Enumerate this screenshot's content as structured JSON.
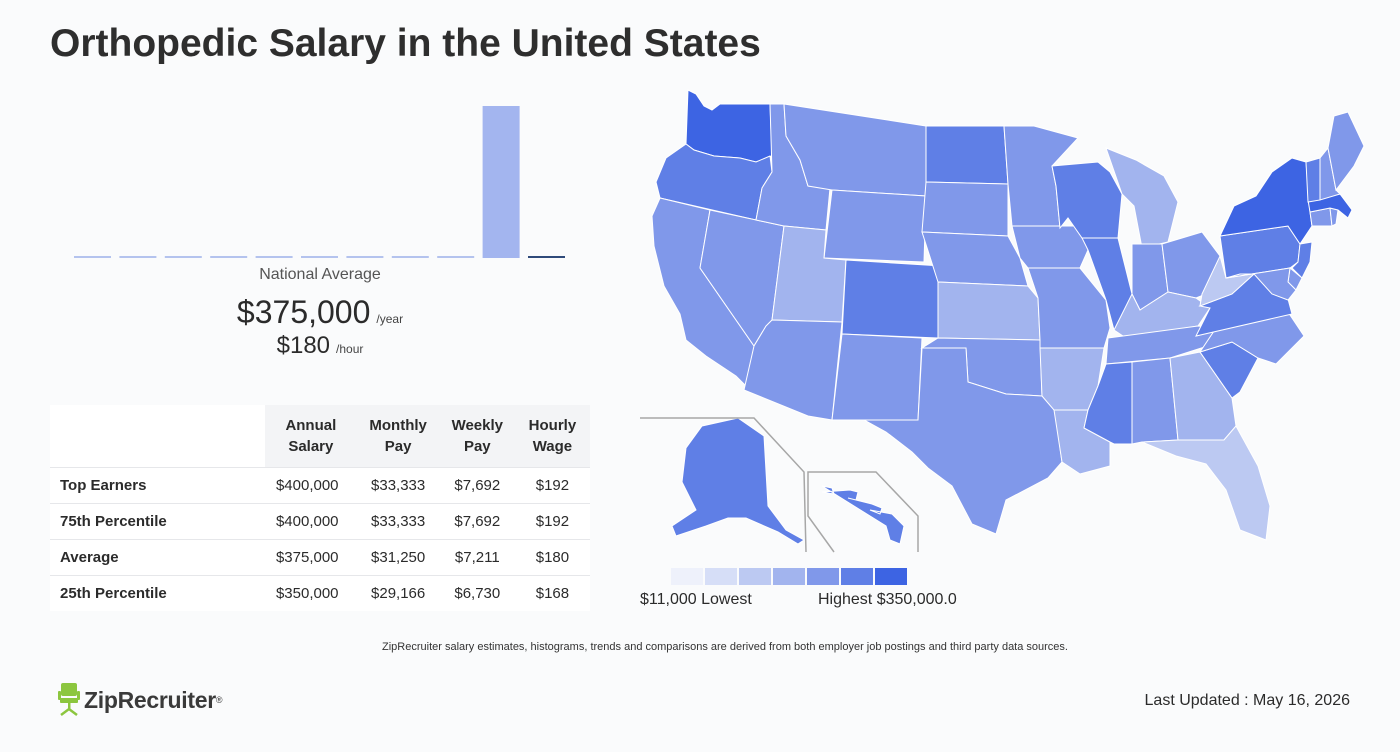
{
  "page": {
    "title": "Orthopedic Salary in the United States",
    "national_average_label": "National Average",
    "annual_salary": "$375,000",
    "annual_unit": "/year",
    "hourly_wage": "$180",
    "hourly_unit": "/hour",
    "footnote": "ZipRecruiter salary estimates, histograms, trends and comparisons are derived from both employer job postings and third party data sources.",
    "logo_text": "ZipRecruiter",
    "logo_reg": "®",
    "last_updated": "Last Updated : May 16, 2026"
  },
  "table": {
    "headers": [
      "",
      "Annual Salary",
      "Monthly Pay",
      "Weekly Pay",
      "Hourly Wage"
    ],
    "rows": [
      {
        "label": "Top Earners",
        "annual": "$400,000",
        "monthly": "$33,333",
        "weekly": "$7,692",
        "hourly": "$192"
      },
      {
        "label": "75th Percentile",
        "annual": "$400,000",
        "monthly": "$33,333",
        "weekly": "$7,692",
        "hourly": "$192"
      },
      {
        "label": "Average",
        "annual": "$375,000",
        "monthly": "$31,250",
        "weekly": "$7,211",
        "hourly": "$180"
      },
      {
        "label": "25th Percentile",
        "annual": "$350,000",
        "monthly": "$29,166",
        "weekly": "$6,730",
        "hourly": "$168"
      }
    ]
  },
  "legend": {
    "low_label": "$11,000 Lowest",
    "high_label": "Highest $350,000.0",
    "colors": [
      "#eef1fb",
      "#d6def7",
      "#bcc9f2",
      "#a2b4ee",
      "#8098ea",
      "#5f7fe6",
      "#3d64e3"
    ]
  },
  "chart_data": [
    {
      "type": "bar",
      "description_role": "salary histogram",
      "values": [
        0,
        0,
        0,
        0,
        0,
        0,
        0,
        0,
        0,
        100,
        0
      ],
      "highlight_index": 9,
      "marker_index": 10,
      "colors": {
        "bar": "#a3b5ef",
        "baseline": "#b4c3ee",
        "marker": "#2f4a7a"
      }
    },
    {
      "type": "choropleth",
      "regions": [
        {
          "state": "WA",
          "shade": 6
        },
        {
          "state": "OR",
          "shade": 5
        },
        {
          "state": "CA",
          "shade": 4
        },
        {
          "state": "NV",
          "shade": 4
        },
        {
          "state": "ID",
          "shade": 4
        },
        {
          "state": "MT",
          "shade": 4
        },
        {
          "state": "WY",
          "shade": 4
        },
        {
          "state": "UT",
          "shade": 3
        },
        {
          "state": "AZ",
          "shade": 4
        },
        {
          "state": "CO",
          "shade": 5
        },
        {
          "state": "NM",
          "shade": 4
        },
        {
          "state": "ND",
          "shade": 5
        },
        {
          "state": "SD",
          "shade": 4
        },
        {
          "state": "NE",
          "shade": 4
        },
        {
          "state": "KS",
          "shade": 3
        },
        {
          "state": "OK",
          "shade": 4
        },
        {
          "state": "TX",
          "shade": 4
        },
        {
          "state": "MN",
          "shade": 4
        },
        {
          "state": "IA",
          "shade": 4
        },
        {
          "state": "MO",
          "shade": 4
        },
        {
          "state": "AR",
          "shade": 3
        },
        {
          "state": "LA",
          "shade": 3
        },
        {
          "state": "WI",
          "shade": 5
        },
        {
          "state": "IL",
          "shade": 5
        },
        {
          "state": "MI",
          "shade": 3
        },
        {
          "state": "IN",
          "shade": 4
        },
        {
          "state": "OH",
          "shade": 4
        },
        {
          "state": "KY",
          "shade": 3
        },
        {
          "state": "TN",
          "shade": 4
        },
        {
          "state": "MS",
          "shade": 5
        },
        {
          "state": "AL",
          "shade": 4
        },
        {
          "state": "GA",
          "shade": 3
        },
        {
          "state": "FL",
          "shade": 2
        },
        {
          "state": "SC",
          "shade": 5
        },
        {
          "state": "NC",
          "shade": 4
        },
        {
          "state": "VA",
          "shade": 5
        },
        {
          "state": "WV",
          "shade": 2
        },
        {
          "state": "PA",
          "shade": 5
        },
        {
          "state": "NY",
          "shade": 6
        },
        {
          "state": "NJ",
          "shade": 5
        },
        {
          "state": "DE",
          "shade": 4
        },
        {
          "state": "MD",
          "shade": 4
        },
        {
          "state": "CT",
          "shade": 4
        },
        {
          "state": "RI",
          "shade": 4
        },
        {
          "state": "MA",
          "shade": 6
        },
        {
          "state": "VT",
          "shade": 5
        },
        {
          "state": "NH",
          "shade": 4
        },
        {
          "state": "ME",
          "shade": 4
        },
        {
          "state": "AK",
          "shade": 5
        },
        {
          "state": "HI",
          "shade": 5
        }
      ]
    }
  ]
}
